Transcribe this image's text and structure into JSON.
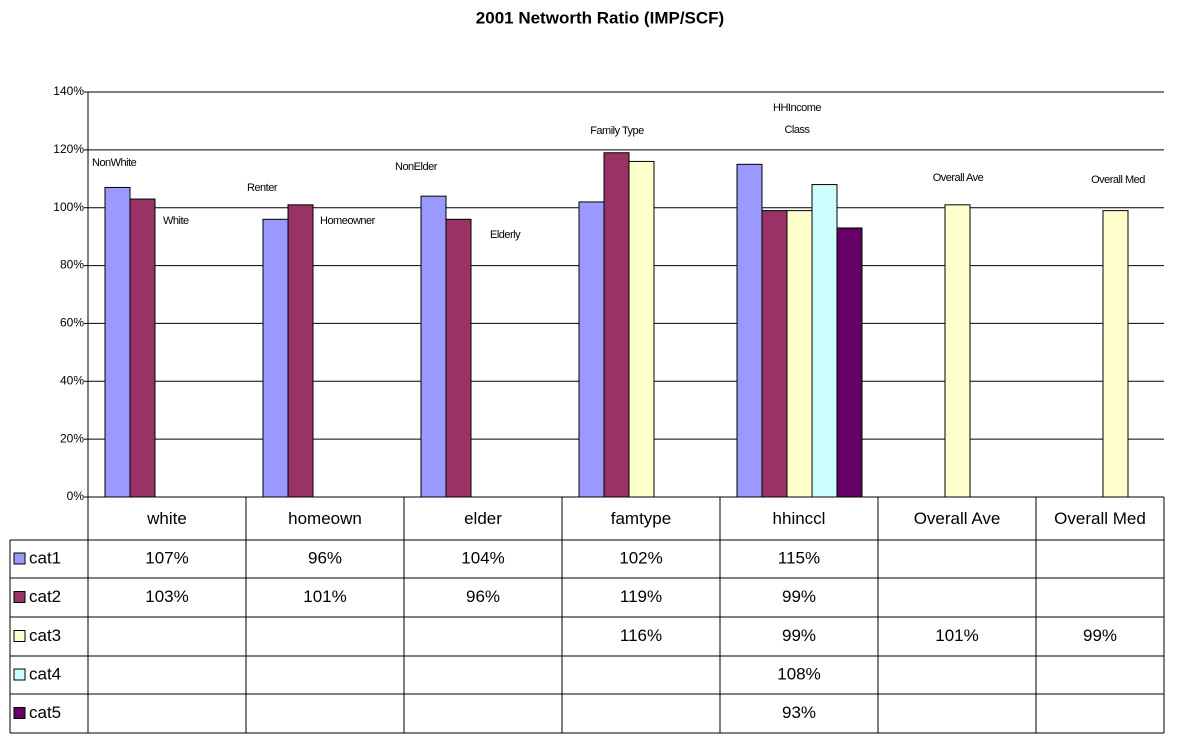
{
  "chart_data": {
    "type": "bar",
    "title": "2001 Networth Ratio (IMP/SCF)",
    "categories": [
      "white",
      "homeown",
      "elder",
      "famtype",
      "hhinccl",
      "Overall Ave",
      "Overall Med"
    ],
    "series": [
      {
        "name": "cat1",
        "color": "#9999ff",
        "values": [
          107,
          96,
          104,
          102,
          115,
          null,
          null
        ],
        "value_labels": [
          "107%",
          "96%",
          "104%",
          "102%",
          "115%",
          null,
          null
        ]
      },
      {
        "name": "cat2",
        "color": "#993366",
        "values": [
          103,
          101,
          96,
          119,
          99,
          null,
          null
        ],
        "value_labels": [
          "103%",
          "101%",
          "96%",
          "119%",
          "99%",
          null,
          null
        ]
      },
      {
        "name": "cat3",
        "color": "#ffffcc",
        "values": [
          null,
          null,
          null,
          116,
          99,
          101,
          99
        ],
        "value_labels": [
          null,
          null,
          null,
          "116%",
          "99%",
          "101%",
          "99%"
        ]
      },
      {
        "name": "cat4",
        "color": "#ccffff",
        "values": [
          null,
          null,
          null,
          null,
          108,
          null,
          null
        ],
        "value_labels": [
          null,
          null,
          null,
          null,
          "108%",
          null,
          null
        ]
      },
      {
        "name": "cat5",
        "color": "#660066",
        "values": [
          null,
          null,
          null,
          null,
          93,
          null,
          null
        ],
        "value_labels": [
          null,
          null,
          null,
          null,
          "93%",
          null,
          null
        ]
      }
    ],
    "annotations": [
      "NonWhite",
      "White",
      "Renter",
      "Homeowner",
      "NonElder",
      "Elderly",
      "Family Type",
      "HHIncome",
      "Class",
      "Overall Ave",
      "Overall Med"
    ],
    "ylim": [
      0,
      140
    ],
    "yticks": [
      {
        "value": 0,
        "label": "0%"
      },
      {
        "value": 20,
        "label": "20%"
      },
      {
        "value": 40,
        "label": "40%"
      },
      {
        "value": 60,
        "label": "60%"
      },
      {
        "value": 80,
        "label": "80%"
      },
      {
        "value": 100,
        "label": "100%"
      },
      {
        "value": 120,
        "label": "120%"
      },
      {
        "value": 140,
        "label": "140%"
      }
    ],
    "grid": true
  }
}
